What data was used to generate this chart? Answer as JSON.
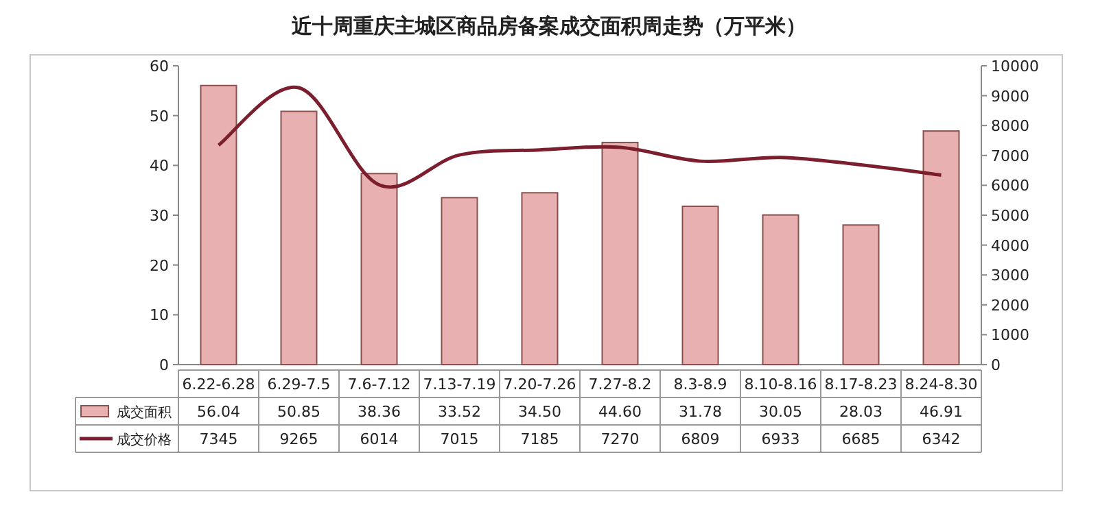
{
  "chart_data": {
    "type": "bar",
    "title": "近十周重庆主城区商品房备案成交面积周走势（万平米）",
    "categories": [
      "6.22-6.28",
      "6.29-7.5",
      "7.6-7.12",
      "7.13-7.19",
      "7.20-7.26",
      "7.27-8.2",
      "8.3-8.9",
      "8.10-8.16",
      "8.17-8.23",
      "8.24-8.30"
    ],
    "series": [
      {
        "name": "成交面积",
        "color": "#e8b0b0",
        "values": [
          56.04,
          50.85,
          38.36,
          33.52,
          34.5,
          44.6,
          31.78,
          30.05,
          28.03,
          46.91
        ],
        "value_labels": [
          "56.04",
          "50.85",
          "38.36",
          "33.52",
          "34.50",
          "44.60",
          "31.78",
          "30.05",
          "28.03",
          "46.91"
        ]
      },
      {
        "name": "成交价格",
        "type": "line",
        "axis": "y2",
        "color": "#7b1f2e",
        "values": [
          7345,
          9265,
          6014,
          7015,
          7185,
          7270,
          6809,
          6933,
          6685,
          6342
        ],
        "value_labels": [
          "7345",
          "9265",
          "6014",
          "7015",
          "7185",
          "7270",
          "6809",
          "6933",
          "6685",
          "6342"
        ]
      }
    ],
    "ylim": [
      0,
      60
    ],
    "yticks": [
      0,
      10,
      20,
      30,
      40,
      50,
      60
    ],
    "y2lim": [
      0,
      10000
    ],
    "y2ticks": [
      0,
      1000,
      2000,
      3000,
      4000,
      5000,
      6000,
      7000,
      8000,
      9000,
      10000
    ],
    "legend": "bottom",
    "grid": false
  }
}
